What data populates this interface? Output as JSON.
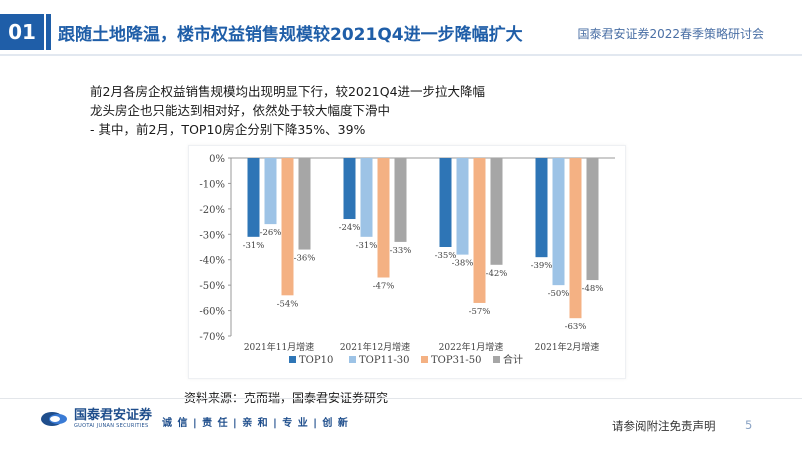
{
  "header": {
    "section_number": "01",
    "title": "跟随土地降温，楼市权益销售规模较2021Q4进一步降幅扩大",
    "subtitle": "国泰君安证券2022春季策略研讨会"
  },
  "bullets": [
    "前2月各房企权益销售规模均出现明显下行，较2021Q4进一步拉大降幅",
    "龙头房企也只能达到相对好，依然处于较大幅度下滑中",
    "- 其中，前2月，TOP10房企分别下降35%、39%"
  ],
  "source": "资料来源：克而瑞，国泰君安证券研究",
  "footer": {
    "logo_cn": "国泰君安证券",
    "logo_en": "GUOTAI JUNAN SECURITIES",
    "motto": "诚 信 | 责 任 | 亲 和 | 专 业 | 创 新",
    "disclaimer": "请参阅附注免责声明",
    "page": "5"
  },
  "colors": {
    "brand": "#1f5ea8",
    "series": [
      "#2e75b6",
      "#9dc3e6",
      "#f4b183",
      "#a6a6a6"
    ]
  },
  "chart_data": {
    "type": "bar",
    "categories": [
      "2021年11月增速",
      "2021年12月增速",
      "2022年1月增速",
      "2021年2月增速"
    ],
    "series": [
      {
        "name": "TOP10",
        "values": [
          -31,
          -24,
          -35,
          -39
        ],
        "labels": [
          "-31%",
          "-24%",
          "-35%",
          "-39%"
        ]
      },
      {
        "name": "TOP11-30",
        "values": [
          -26,
          -31,
          -38,
          -50
        ],
        "labels": [
          "-26%",
          "-31%",
          "-38%",
          "-50%"
        ]
      },
      {
        "name": "TOP31-50",
        "values": [
          -54,
          -47,
          -57,
          -63
        ],
        "labels": [
          "-54%",
          "-47%",
          "-57%",
          "-63%"
        ]
      },
      {
        "name": "合计",
        "values": [
          -36,
          -33,
          -42,
          -48
        ],
        "labels": [
          "-36%",
          "-33%",
          "-42%",
          "-48%"
        ]
      }
    ],
    "yticks": [
      "0%",
      "-10%",
      "-20%",
      "-30%",
      "-40%",
      "-50%",
      "-60%",
      "-70%"
    ],
    "ylim": [
      -70,
      0
    ],
    "legend_position": "bottom"
  }
}
